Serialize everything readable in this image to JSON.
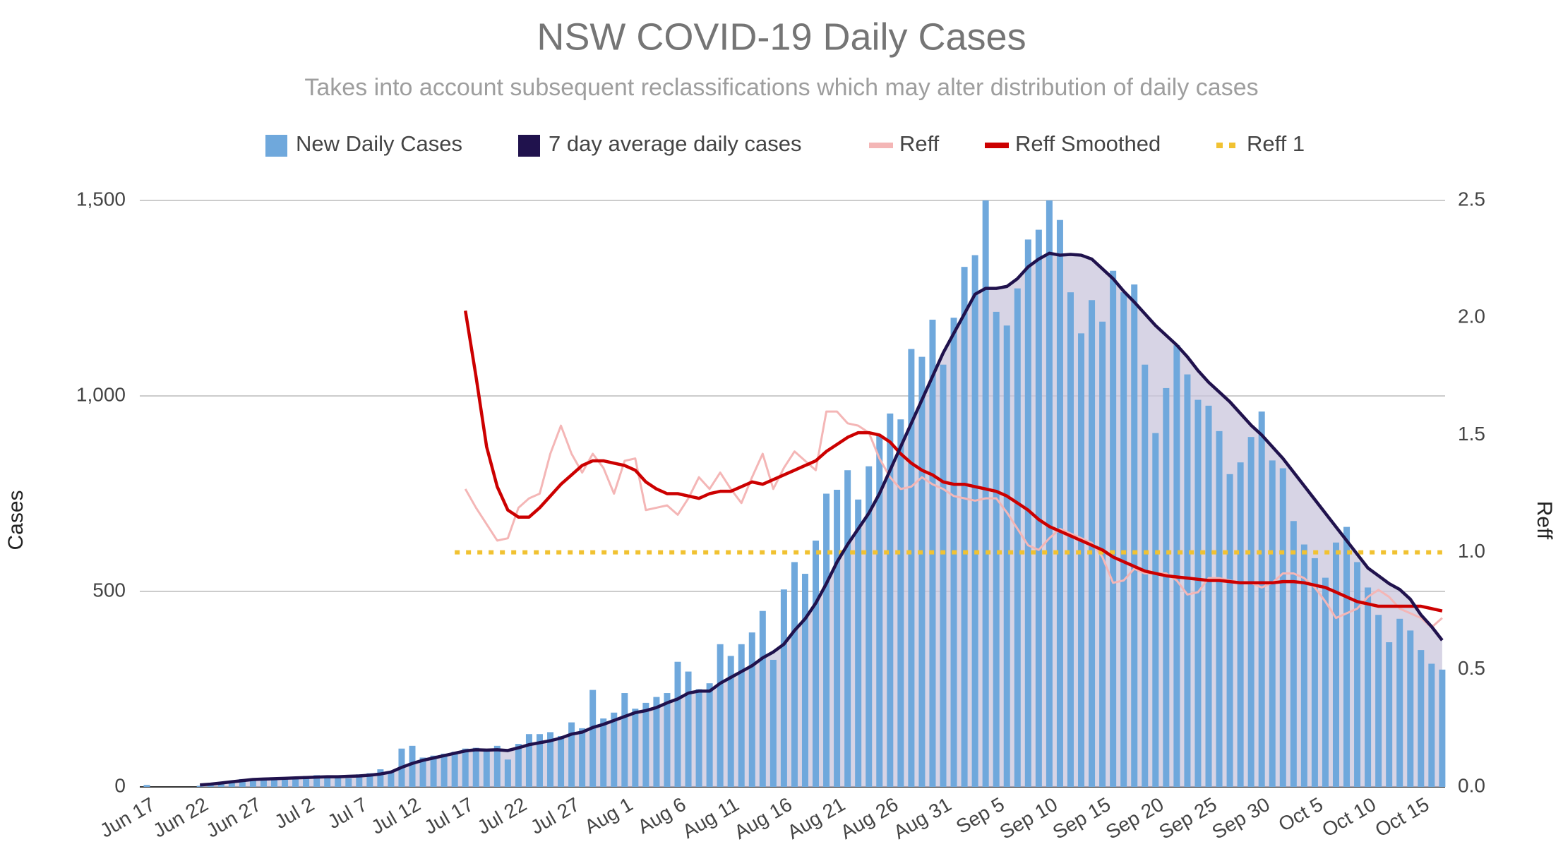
{
  "chart_data": {
    "type": "combo",
    "title": "NSW COVID-19 Daily Cases",
    "subtitle": "Takes into account subsequent reclassifications which may alter distribution of daily cases",
    "ylabel": "Cases",
    "y2label": "Reff",
    "grid": true,
    "legend": "top",
    "categories": [
      "Jun 17",
      null,
      null,
      null,
      null,
      "Jun 22",
      null,
      null,
      null,
      null,
      "Jun 27",
      null,
      null,
      null,
      null,
      "Jul 2",
      null,
      null,
      null,
      null,
      "Jul 7",
      null,
      null,
      null,
      null,
      "Jul 12",
      null,
      null,
      null,
      null,
      "Jul 17",
      null,
      null,
      null,
      null,
      "Jul 22",
      null,
      null,
      null,
      null,
      "Jul 27",
      null,
      null,
      null,
      null,
      "Aug 1",
      null,
      null,
      null,
      null,
      "Aug 6",
      null,
      null,
      null,
      null,
      "Aug 11",
      null,
      null,
      null,
      null,
      "Aug 16",
      null,
      null,
      null,
      null,
      "Aug 21",
      null,
      null,
      null,
      null,
      "Aug 26",
      null,
      null,
      null,
      null,
      "Aug 31",
      null,
      null,
      null,
      null,
      "Sep 5",
      null,
      null,
      null,
      null,
      "Sep 10",
      null,
      null,
      null,
      null,
      "Sep 15",
      null,
      null,
      null,
      null,
      "Sep 20",
      null,
      null,
      null,
      null,
      "Sep 25",
      null,
      null,
      null,
      null,
      "Sep 30",
      null,
      null,
      null,
      null,
      "Oct 5",
      null,
      null,
      null,
      null,
      "Oct 10",
      null,
      null,
      null,
      null,
      "Oct 15",
      null,
      null
    ],
    "ylim": [
      0,
      1500
    ],
    "yticks": [
      0,
      500,
      {
        "value": 1000,
        "label": "1,000"
      },
      {
        "value": 1500,
        "label": "1,500"
      }
    ],
    "y2lim": [
      0,
      2.5
    ],
    "y2ticks": [
      {
        "value": 0,
        "label": "0.0"
      },
      0.5,
      {
        "value": 1,
        "label": "1.0"
      },
      1.5,
      {
        "value": 2,
        "label": "2.0"
      },
      2.5
    ],
    "series": [
      {
        "name": "New Daily Cases",
        "type": "bar",
        "color": "#6fa8dc",
        "values": [
          5,
          0,
          0,
          0,
          0,
          3,
          10,
          12,
          15,
          20,
          22,
          18,
          20,
          24,
          25,
          28,
          30,
          27,
          25,
          22,
          32,
          35,
          45,
          40,
          98,
          105,
          75,
          80,
          85,
          90,
          98,
          100,
          95,
          105,
          70,
          110,
          135,
          135,
          140,
          130,
          165,
          150,
          248,
          175,
          190,
          240,
          200,
          215,
          230,
          240,
          320,
          295,
          250,
          265,
          365,
          335,
          365,
          395,
          450,
          325,
          505,
          575,
          545,
          630,
          750,
          760,
          810,
          735,
          820,
          900,
          955,
          940,
          1120,
          1100,
          1195,
          1080,
          1200,
          1330,
          1360,
          1500,
          1215,
          1180,
          1275,
          1400,
          1425,
          1500,
          1450,
          1265,
          1160,
          1245,
          1190,
          1320,
          1265,
          1285,
          1080,
          905,
          1020,
          1130,
          1055,
          990,
          975,
          910,
          800,
          830,
          895,
          960,
          835,
          815,
          680,
          620,
          585,
          535,
          625,
          665,
          575,
          510,
          440,
          370,
          430,
          400,
          350,
          315,
          300
        ]
      },
      {
        "name": "7 day average daily cases",
        "type": "line",
        "area": true,
        "color": "#20124d",
        "values": [
          null,
          null,
          null,
          null,
          null,
          5,
          7,
          10,
          13,
          16,
          19,
          20,
          21,
          22,
          23,
          24,
          25,
          26,
          26,
          27,
          28,
          30,
          33,
          38,
          50,
          60,
          68,
          74,
          80,
          86,
          92,
          95,
          94,
          95,
          93,
          100,
          108,
          113,
          118,
          125,
          135,
          140,
          152,
          160,
          170,
          180,
          190,
          195,
          203,
          215,
          225,
          240,
          245,
          245,
          265,
          280,
          295,
          310,
          330,
          345,
          365,
          400,
          430,
          470,
          520,
          575,
          620,
          660,
          700,
          750,
          810,
          870,
          930,
          990,
          1050,
          1110,
          1160,
          1210,
          1260,
          1275,
          1275,
          1280,
          1300,
          1330,
          1350,
          1365,
          1360,
          1362,
          1360,
          1350,
          1325,
          1300,
          1268,
          1240,
          1210,
          1180,
          1155,
          1130,
          1100,
          1065,
          1035,
          1010,
          985,
          955,
          925,
          900,
          870,
          840,
          805,
          770,
          735,
          700,
          665,
          630,
          595,
          560,
          540,
          520,
          505,
          480,
          440,
          410,
          375
        ]
      },
      {
        "name": "Reff",
        "type": "line",
        "axis": "y2",
        "color": "#f4b6b6",
        "values": [
          null,
          null,
          null,
          null,
          null,
          null,
          null,
          null,
          null,
          null,
          null,
          null,
          null,
          null,
          null,
          null,
          null,
          null,
          null,
          null,
          null,
          null,
          null,
          null,
          null,
          null,
          null,
          null,
          null,
          null,
          1.27,
          1.19,
          1.12,
          1.05,
          1.06,
          1.19,
          1.23,
          1.25,
          1.42,
          1.54,
          1.42,
          1.34,
          1.42,
          1.36,
          1.25,
          1.39,
          1.4,
          1.18,
          1.19,
          1.2,
          1.16,
          1.23,
          1.32,
          1.27,
          1.34,
          1.27,
          1.21,
          1.32,
          1.42,
          1.27,
          1.36,
          1.43,
          1.39,
          1.35,
          1.6,
          1.6,
          1.55,
          1.54,
          1.51,
          1.4,
          1.32,
          1.27,
          1.28,
          1.32,
          1.29,
          1.27,
          1.24,
          1.23,
          1.22,
          1.23,
          1.23,
          1.17,
          1.1,
          1.03,
          1.01,
          1.06,
          1.1,
          1.08,
          1.06,
          1.04,
          0.98,
          0.87,
          0.88,
          0.93,
          0.91,
          0.91,
          0.91,
          0.88,
          0.82,
          0.83,
          0.89,
          0.89,
          0.88,
          0.87,
          0.87,
          0.85,
          0.87,
          0.91,
          0.91,
          0.89,
          0.85,
          0.79,
          0.72,
          0.74,
          0.76,
          0.81,
          0.84,
          0.81,
          0.76,
          0.74,
          0.72,
          0.68,
          0.72
        ]
      },
      {
        "name": "Reff Smoothed",
        "type": "line",
        "axis": "y2",
        "color": "#cc0000",
        "values": [
          null,
          null,
          null,
          null,
          null,
          null,
          null,
          null,
          null,
          null,
          null,
          null,
          null,
          null,
          null,
          null,
          null,
          null,
          null,
          null,
          null,
          null,
          null,
          null,
          null,
          null,
          null,
          null,
          null,
          null,
          2.03,
          1.75,
          1.45,
          1.28,
          1.18,
          1.15,
          1.15,
          1.19,
          1.24,
          1.29,
          1.33,
          1.37,
          1.39,
          1.39,
          1.38,
          1.37,
          1.35,
          1.3,
          1.27,
          1.25,
          1.25,
          1.24,
          1.23,
          1.25,
          1.26,
          1.26,
          1.28,
          1.3,
          1.29,
          1.31,
          1.33,
          1.35,
          1.37,
          1.39,
          1.43,
          1.46,
          1.49,
          1.51,
          1.51,
          1.5,
          1.47,
          1.42,
          1.38,
          1.35,
          1.33,
          1.3,
          1.29,
          1.29,
          1.28,
          1.27,
          1.26,
          1.24,
          1.21,
          1.18,
          1.14,
          1.11,
          1.09,
          1.07,
          1.05,
          1.03,
          1.01,
          0.98,
          0.96,
          0.94,
          0.92,
          0.91,
          0.9,
          0.895,
          0.89,
          0.885,
          0.88,
          0.88,
          0.875,
          0.87,
          0.87,
          0.87,
          0.87,
          0.875,
          0.875,
          0.87,
          0.86,
          0.85,
          0.83,
          0.81,
          0.79,
          0.78,
          0.77,
          0.77,
          0.77,
          0.77,
          0.77,
          0.76,
          0.75
        ]
      },
      {
        "name": "Reff 1",
        "type": "line",
        "axis": "y2",
        "dash": "dotted",
        "color": "#f1c232",
        "values": [
          null,
          null,
          null,
          null,
          null,
          null,
          null,
          null,
          null,
          null,
          null,
          null,
          null,
          null,
          null,
          null,
          null,
          null,
          null,
          null,
          null,
          null,
          null,
          null,
          null,
          null,
          null,
          null,
          null,
          1,
          1,
          1,
          1,
          1,
          1,
          1,
          1,
          1,
          1,
          1,
          1,
          1,
          1,
          1,
          1,
          1,
          1,
          1,
          1,
          1,
          1,
          1,
          1,
          1,
          1,
          1,
          1,
          1,
          1,
          1,
          1,
          1,
          1,
          1,
          1,
          1,
          1,
          1,
          1,
          1,
          1,
          1,
          1,
          1,
          1,
          1,
          1,
          1,
          1,
          1,
          1,
          1,
          1,
          1,
          1,
          1,
          1,
          1,
          1,
          1,
          1,
          1,
          1,
          1,
          1,
          1,
          1,
          1,
          1,
          1,
          1,
          1,
          1,
          1,
          1,
          1,
          1,
          1,
          1,
          1,
          1,
          1,
          1,
          1,
          1,
          1,
          1,
          1,
          1,
          1,
          1,
          1,
          1
        ]
      }
    ]
  }
}
